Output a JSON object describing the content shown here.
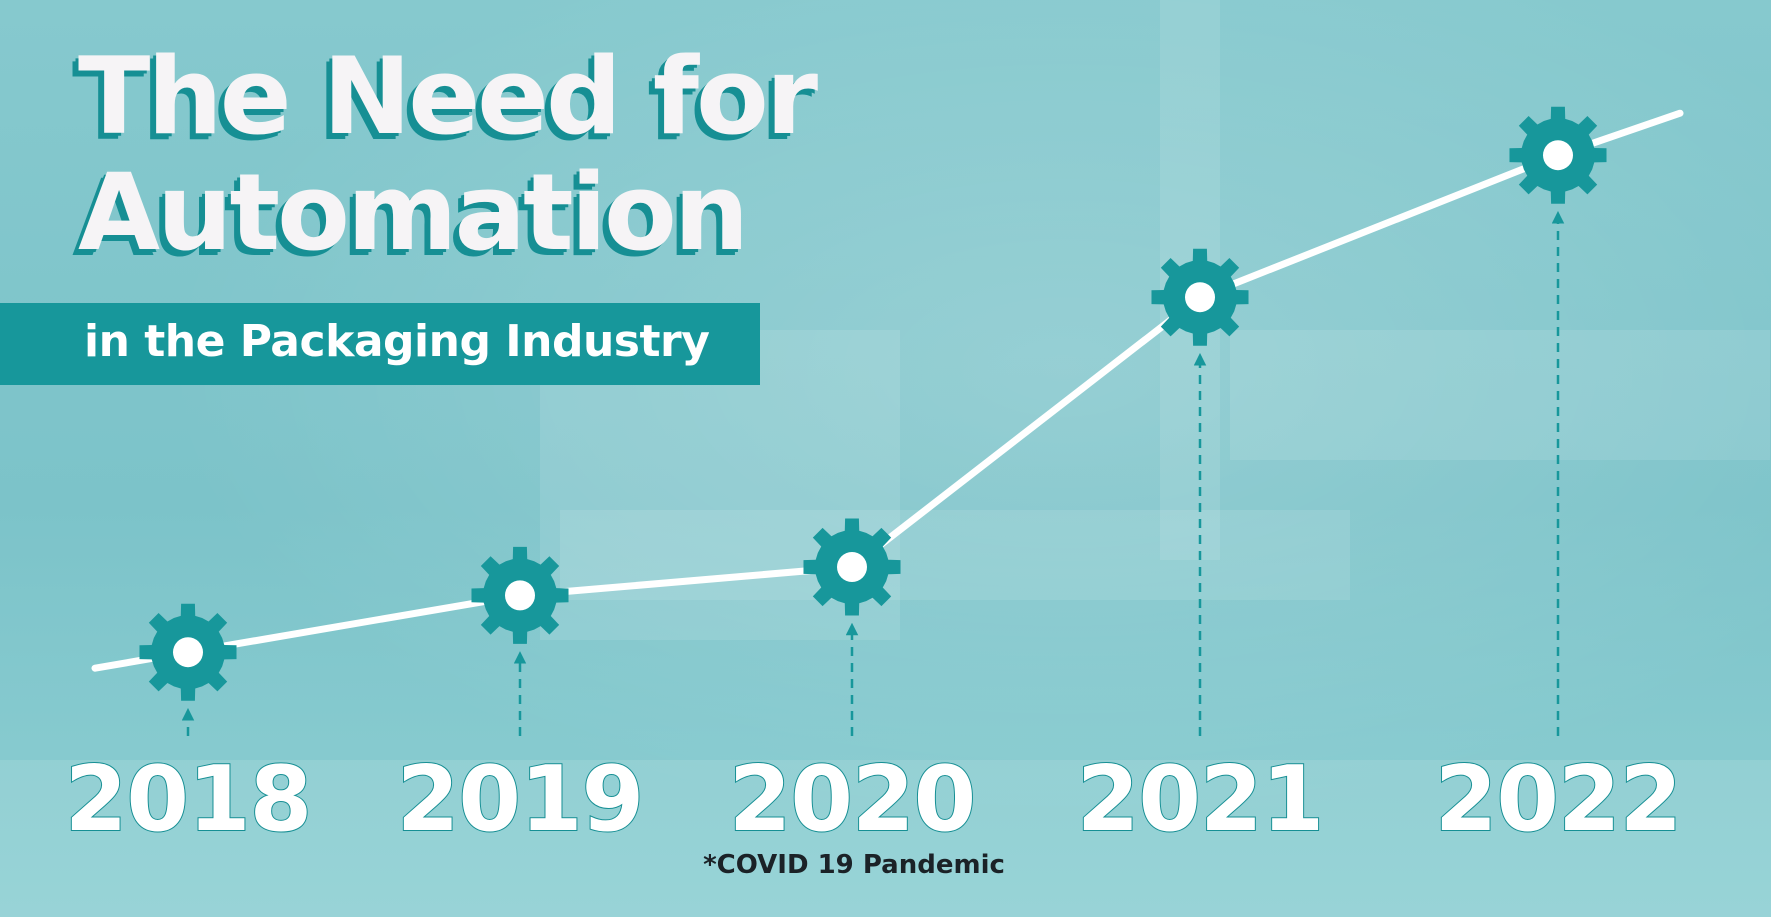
{
  "title_line1": "The Need for",
  "title_line2": "Automation",
  "subtitle": "in the Packaging Industry",
  "footnote": "*COVID 19 Pandemic",
  "colors": {
    "accent": "#17979b",
    "line": "#ffffff",
    "title": "#f6f4f6"
  },
  "chart_data": {
    "type": "line",
    "title": "The Need for Automation",
    "subtitle": "in the Packaging Industry",
    "categories": [
      "2018",
      "2019",
      "2020",
      "2021",
      "2022"
    ],
    "values": [
      1.8,
      2.6,
      3.0,
      6.8,
      8.8
    ],
    "ylim": [
      0,
      10
    ],
    "marker": "gear-icon",
    "grid": false,
    "annotations": [
      {
        "x": "2020",
        "text": "*COVID 19 Pandemic"
      }
    ]
  }
}
